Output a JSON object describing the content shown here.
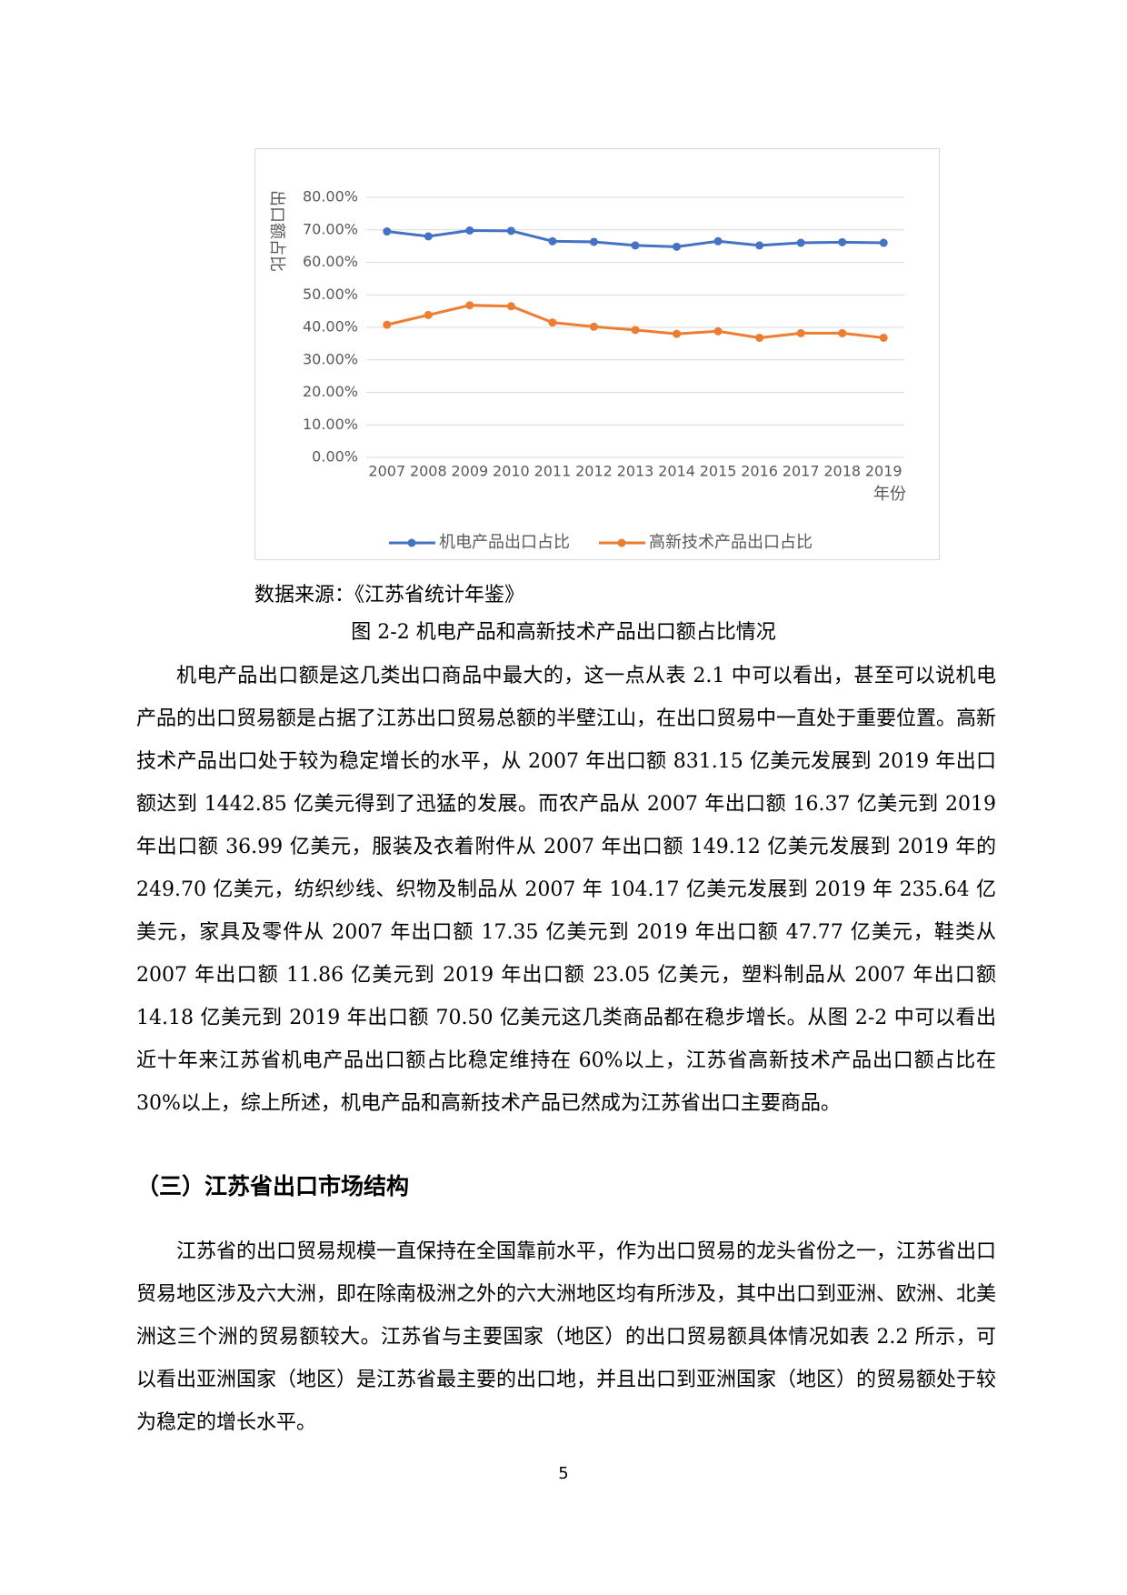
{
  "chart_data": {
    "type": "line",
    "categories": [
      "2007",
      "2008",
      "2009",
      "2010",
      "2011",
      "2012",
      "2013",
      "2014",
      "2015",
      "2016",
      "2017",
      "2018",
      "2019"
    ],
    "series": [
      {
        "name": "机电产品出口占比",
        "color": "#4472c4",
        "values": [
          69.5,
          68.0,
          69.8,
          69.7,
          66.5,
          66.3,
          65.2,
          64.8,
          66.5,
          65.2,
          66.0,
          66.2,
          66.0
        ]
      },
      {
        "name": "高新技术产品出口占比",
        "color": "#ed7d31",
        "values": [
          40.8,
          43.8,
          46.8,
          46.5,
          41.5,
          40.2,
          39.2,
          38.0,
          38.8,
          36.8,
          38.2,
          38.2,
          36.8
        ]
      }
    ],
    "ylim": [
      0,
      80
    ],
    "yticks": [
      {
        "value": 0,
        "label": "0.00%"
      },
      {
        "value": 10,
        "label": "10.00%"
      },
      {
        "value": 20,
        "label": "20.00%"
      },
      {
        "value": 30,
        "label": "30.00%"
      },
      {
        "value": 40,
        "label": "40.00%"
      },
      {
        "value": 50,
        "label": "50.00%"
      },
      {
        "value": 60,
        "label": "60.00%"
      },
      {
        "value": 70,
        "label": "70.00%"
      },
      {
        "value": 80,
        "label": "80.00%"
      }
    ],
    "y_label": "出口额占比",
    "x_label": "年份",
    "grid": true,
    "legend": "bottom"
  },
  "source": "数据来源：《江苏省统计年鉴》",
  "caption": "图 2-2 机电产品和高新技术产品出口额占比情况",
  "paragraphs": [
    "机电产品出口额是这几类出口商品中最大的，这一点从表 2.1 中可以看出，甚至可以说机电产品的出口贸易额是占据了江苏出口贸易总额的半壁江山，在出口贸易中一直处于重要位置。高新技术产品出口处于较为稳定增长的水平，从 2007 年出口额 831.15 亿美元发展到 2019 年出口额达到 1442.85 亿美元得到了迅猛的发展。而农产品从 2007 年出口额 16.37 亿美元到 2019 年出口额 36.99 亿美元，服装及衣着附件从 2007 年出口额 149.12 亿美元发展到 2019 年的 249.70 亿美元，纺织纱线、织物及制品从 2007 年 104.17 亿美元发展到 2019 年 235.64 亿美元，家具及零件从 2007 年出口额 17.35 亿美元到 2019 年出口额 47.77 亿美元，鞋类从 2007 年出口额 11.86 亿美元到 2019 年出口额 23.05 亿美元，塑料制品从 2007 年出口额 14.18 亿美元到 2019 年出口额 70.50 亿美元这几类商品都在稳步增长。从图 2-2 中可以看出近十年来江苏省机电产品出口额占比稳定维持在 60%以上，江苏省高新技术产品出口额占比在 30%以上，综上所述，机电产品和高新技术产品已然成为江苏省出口主要商品。",
    "江苏省的出口贸易规模一直保持在全国靠前水平，作为出口贸易的龙头省份之一，江苏省出口贸易地区涉及六大洲，即在除南极洲之外的六大洲地区均有所涉及，其中出口到亚洲、欧洲、北美洲这三个洲的贸易额较大。江苏省与主要国家（地区）的出口贸易额具体情况如表 2.2 所示，可以看出亚洲国家（地区）是江苏省最主要的出口地，并且出口到亚洲国家（地区）的贸易额处于较为稳定的增长水平。"
  ],
  "heading": "（三）江苏省出口市场结构",
  "page_number": "5"
}
